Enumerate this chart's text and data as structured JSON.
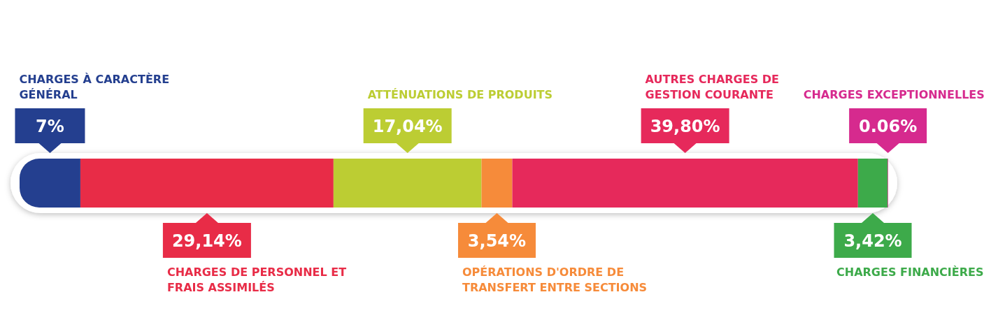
{
  "chart_data": {
    "type": "bar",
    "orientation": "horizontal",
    "stacked": true,
    "categories": [
      null
    ],
    "series": [
      {
        "name": "CHARGES À CARACTÈRE GÉNÉRAL",
        "color": "#243f8f",
        "values": [
          7
        ],
        "value_labels": [
          "7%"
        ]
      },
      {
        "name": "CHARGES DE PERSONNEL ET FRAIS ASSIMILÉS",
        "color": "#e82c47",
        "values": [
          29.14
        ],
        "value_labels": [
          "29,14%"
        ]
      },
      {
        "name": "ATTÉNUATIONS DE PRODUITS",
        "color": "#bccd33",
        "values": [
          17.04
        ],
        "value_labels": [
          "17,04%"
        ]
      },
      {
        "name": "OPÉRATIONS D'ORDRE DE TRANSFERT ENTRE SECTIONS",
        "color": "#f68b3a",
        "values": [
          3.54
        ],
        "value_labels": [
          "3,54%"
        ]
      },
      {
        "name": "AUTRES CHARGES DE GESTION COURANTE",
        "color": "#e6295b",
        "values": [
          39.8
        ],
        "value_labels": [
          "39,80%"
        ]
      },
      {
        "name": "CHARGES FINANCIÈRES",
        "color": "#3daa4a",
        "values": [
          3.42
        ],
        "value_labels": [
          "3,42%"
        ]
      },
      {
        "name": "CHARGES EXCEPTIONNELLES",
        "color": "#d62a8e",
        "values": [
          0.06
        ],
        "value_labels": [
          "0.06%"
        ]
      }
    ]
  }
}
